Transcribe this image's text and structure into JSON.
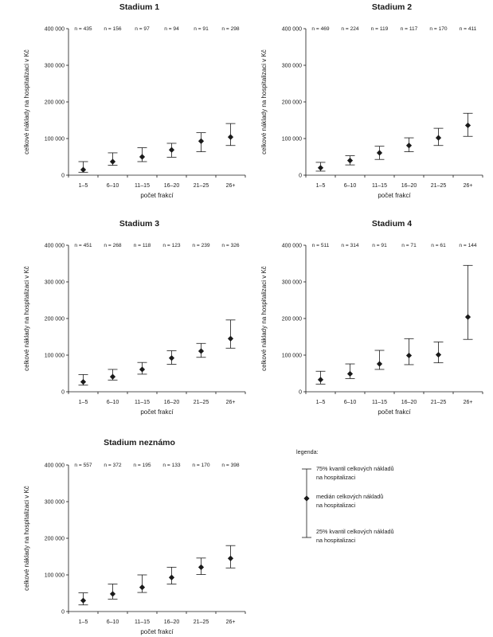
{
  "chart_data": [
    {
      "type": "scatter",
      "title": "Stadium 1",
      "xlabel": "počet frakcí",
      "ylabel": "celkové náklady na hospitalizaci v Kč",
      "categories": [
        "1–5",
        "6–10",
        "11–15",
        "16–20",
        "21–25",
        "26+"
      ],
      "n_labels": [
        "n = 435",
        "n = 156",
        "n = 97",
        "n = 94",
        "n = 91",
        "n = 298"
      ],
      "median": [
        15000,
        37000,
        50000,
        69000,
        93000,
        104000
      ],
      "q25": [
        8000,
        27000,
        37000,
        49000,
        64000,
        81000
      ],
      "q75": [
        37000,
        61000,
        75000,
        87000,
        116000,
        141000
      ],
      "ylim": [
        0,
        400000
      ],
      "yticks": [
        "0",
        "100 000",
        "200 000",
        "300 000",
        "400 000"
      ]
    },
    {
      "type": "scatter",
      "title": "Stadium 2",
      "xlabel": "počet frakcí",
      "ylabel": "celkové náklady na hospitalizaci v Kč",
      "categories": [
        "1–5",
        "6–10",
        "11–15",
        "16–20",
        "21–25",
        "26+"
      ],
      "n_labels": [
        "n = 469",
        "n = 224",
        "n = 119",
        "n = 117",
        "n = 170",
        "n = 411"
      ],
      "median": [
        20000,
        40000,
        61000,
        81000,
        102000,
        136000
      ],
      "q25": [
        11000,
        28000,
        43000,
        64000,
        81000,
        106000
      ],
      "q75": [
        35000,
        53000,
        79000,
        102000,
        128000,
        169000
      ],
      "ylim": [
        0,
        400000
      ],
      "yticks": [
        "0",
        "100 000",
        "200 000",
        "300 000",
        "400 000"
      ]
    },
    {
      "type": "scatter",
      "title": "Stadium 3",
      "xlabel": "počet frakcí",
      "ylabel": "celkové náklady na hospitalizaci v Kč",
      "categories": [
        "1–5",
        "6–10",
        "11–15",
        "16–20",
        "21–25",
        "26+"
      ],
      "n_labels": [
        "n = 451",
        "n = 268",
        "n = 118",
        "n = 123",
        "n = 239",
        "n = 326"
      ],
      "median": [
        27000,
        41000,
        61000,
        92000,
        111000,
        145000
      ],
      "q25": [
        18000,
        32000,
        48000,
        75000,
        94000,
        119000
      ],
      "q75": [
        47000,
        61000,
        80000,
        112000,
        132000,
        196000
      ],
      "ylim": [
        0,
        400000
      ],
      "yticks": [
        "0",
        "100 000",
        "200 000",
        "300 000",
        "400 000"
      ]
    },
    {
      "type": "scatter",
      "title": "Stadium 4",
      "xlabel": "počet frakcí",
      "ylabel": "celkové náklady na hospitalizaci v Kč",
      "categories": [
        "1–5",
        "6–10",
        "11–15",
        "16–20",
        "21–25",
        "26+"
      ],
      "n_labels": [
        "n = 511",
        "n = 314",
        "n = 91",
        "n = 71",
        "n = 61",
        "n = 144"
      ],
      "median": [
        33000,
        49000,
        76000,
        99000,
        101000,
        204000
      ],
      "q25": [
        21000,
        36000,
        61000,
        74000,
        79000,
        143000
      ],
      "q75": [
        56000,
        76000,
        113000,
        145000,
        136000,
        345000
      ],
      "ylim": [
        0,
        400000
      ],
      "yticks": [
        "0",
        "100 000",
        "200 000",
        "300 000",
        "400 000"
      ]
    },
    {
      "type": "scatter",
      "title": "Stadium neznámo",
      "xlabel": "počet frakcí",
      "ylabel": "celkové náklady na hospitalizaci v Kč",
      "categories": [
        "1–5",
        "6–10",
        "11–15",
        "16–20",
        "21–25",
        "26+"
      ],
      "n_labels": [
        "n = 557",
        "n = 372",
        "n = 195",
        "n = 133",
        "n = 170",
        "n = 398"
      ],
      "median": [
        30000,
        48000,
        66000,
        93000,
        121000,
        145000
      ],
      "q25": [
        18000,
        34000,
        52000,
        75000,
        101000,
        119000
      ],
      "q75": [
        51000,
        75000,
        100000,
        121000,
        146000,
        180000
      ],
      "ylim": [
        0,
        400000
      ],
      "yticks": [
        "0",
        "100 000",
        "200 000",
        "300 000",
        "400 000"
      ]
    }
  ],
  "legend": {
    "title": "legenda:",
    "q75_label": [
      "75% kvantil celkových nákladů",
      "na hospitalizaci"
    ],
    "median_label": [
      "medián  celkových nákladů",
      "na hospitalizaci"
    ],
    "q25_label": [
      "25% kvantil celkových nákladů",
      "na hospitalizaci"
    ]
  }
}
